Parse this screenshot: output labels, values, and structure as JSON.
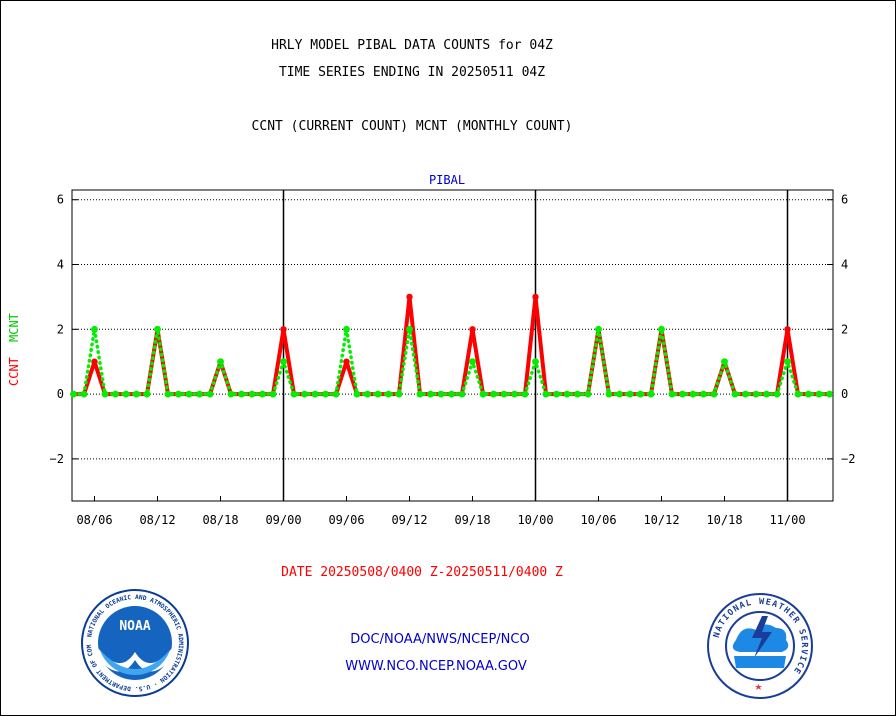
{
  "header": {
    "title1": "HRLY MODEL PIBAL DATA COUNTS for 04Z",
    "title2": "TIME SERIES ENDING IN 20250511 04Z",
    "legend_desc": "CCNT (CURRENT COUNT) MCNT (MONTHLY COUNT)"
  },
  "footer": {
    "date_range": "DATE 20250508/0400 Z-20250511/0400 Z",
    "org": "DOC/NOAA/NWS/NCEP/NCO",
    "url": "WWW.NCO.NCEP.NOAA.GOV"
  },
  "logos": {
    "noaa": {
      "text": "NOAA",
      "ring": "NATIONAL OCEANIC AND ATMOSPHERIC ADMINISTRATION · U.S. DEPARTMENT OF COMMERCE"
    },
    "nws": {
      "ring": "NATIONAL WEATHER SERVICE"
    }
  },
  "chart_data": {
    "type": "line",
    "title": "PIBAL",
    "ylabel_ccnt": "CCNT",
    "ylabel_mcnt": "MCNT",
    "ylim": [
      -3.3,
      6.3
    ],
    "yticks": [
      -2,
      0,
      2,
      4,
      6
    ],
    "x_tick_labels": [
      "08/06",
      "08/12",
      "08/18",
      "09/00",
      "09/06",
      "09/12",
      "09/18",
      "10/00",
      "10/06",
      "10/12",
      "10/18",
      "11/00"
    ],
    "x_day_boundaries": [
      "09/00",
      "10/00",
      "11/00"
    ],
    "grid": true,
    "colors": {
      "ccnt": "#ff0000",
      "mcnt": "#00ee00",
      "title": "#0000cc",
      "footer_org": "#0000cc",
      "date": "#ff0000"
    },
    "x_hours": [
      4,
      5,
      6,
      7,
      8,
      9,
      10,
      11,
      12,
      13,
      14,
      15,
      16,
      17,
      18,
      19,
      20,
      21,
      22,
      23,
      24,
      25,
      26,
      27,
      28,
      29,
      30,
      31,
      32,
      33,
      34,
      35,
      36,
      37,
      38,
      39,
      40,
      41,
      42,
      43,
      44,
      45,
      46,
      47,
      48,
      49,
      50,
      51,
      52,
      53,
      54,
      55,
      56,
      57,
      58,
      59,
      60,
      61,
      62,
      63,
      64,
      65,
      66,
      67,
      68,
      69,
      70,
      71,
      72,
      73,
      74,
      75,
      76
    ],
    "series": [
      {
        "name": "CCNT",
        "values": [
          0,
          0,
          1,
          0,
          0,
          0,
          0,
          0,
          2,
          0,
          0,
          0,
          0,
          0,
          1,
          0,
          0,
          0,
          0,
          0,
          2,
          0,
          0,
          0,
          0,
          0,
          1,
          0,
          0,
          0,
          0,
          0,
          3,
          0,
          0,
          0,
          0,
          0,
          2,
          0,
          0,
          0,
          0,
          0,
          3,
          0,
          0,
          0,
          0,
          0,
          2,
          0,
          0,
          0,
          0,
          0,
          2,
          0,
          0,
          0,
          0,
          0,
          1,
          0,
          0,
          0,
          0,
          0,
          2,
          0,
          0,
          0,
          0
        ]
      },
      {
        "name": "MCNT",
        "values": [
          0,
          0,
          2,
          0,
          0,
          0,
          0,
          0,
          2,
          0,
          0,
          0,
          0,
          0,
          1,
          0,
          0,
          0,
          0,
          0,
          1,
          0,
          0,
          0,
          0,
          0,
          2,
          0,
          0,
          0,
          0,
          0,
          2,
          0,
          0,
          0,
          0,
          0,
          1,
          0,
          0,
          0,
          0,
          0,
          1,
          0,
          0,
          0,
          0,
          0,
          2,
          0,
          0,
          0,
          0,
          0,
          2,
          0,
          0,
          0,
          0,
          0,
          1,
          0,
          0,
          0,
          0,
          0,
          1,
          0,
          0,
          0,
          0
        ]
      }
    ]
  }
}
